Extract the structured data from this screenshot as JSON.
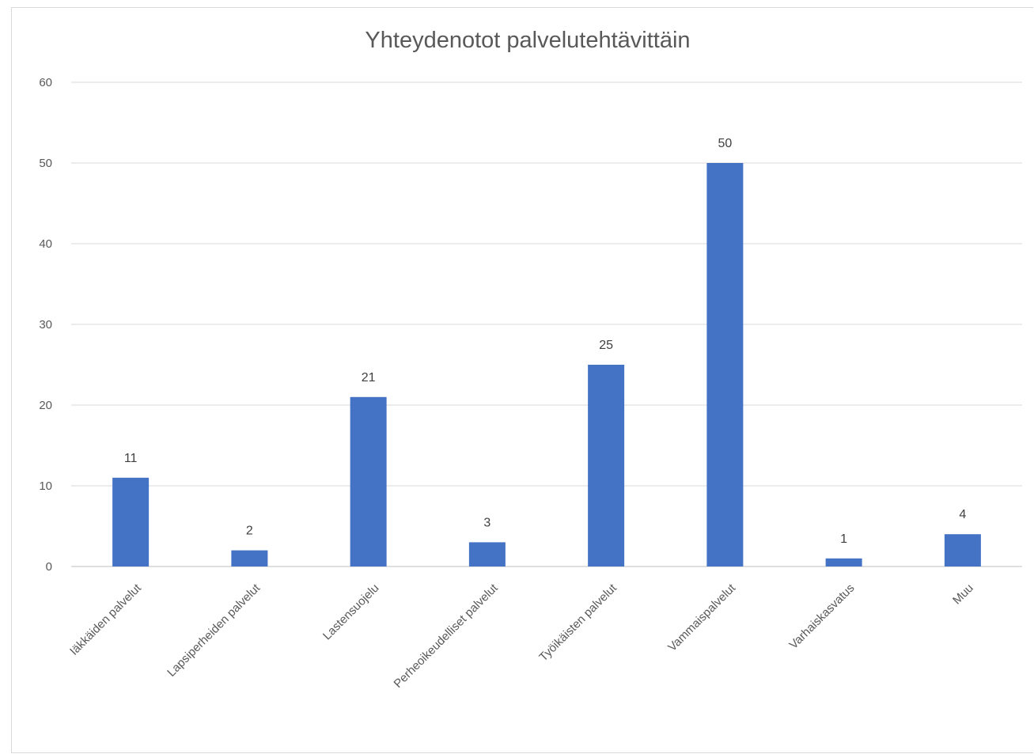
{
  "chart_data": {
    "type": "bar",
    "title": "Yhteydenotot palvelutehtävittäin",
    "categories": [
      "Iäkkäiden palvelut",
      "Lapsiperheiden palvelut",
      "Lastensuojelu",
      "Perheoikeudelliset palvelut",
      "Työikäisten palvelut",
      "Vammaispalvelut",
      "Varhaiskasvatus",
      "Muu"
    ],
    "values": [
      11,
      2,
      21,
      3,
      25,
      50,
      1,
      4
    ],
    "data_labels": [
      "11",
      "2",
      "21",
      "3",
      "25",
      "50",
      "1",
      "4"
    ],
    "yticks": [
      "0",
      "10",
      "20",
      "30",
      "40",
      "50",
      "60"
    ],
    "ylim": [
      0,
      60
    ],
    "xlabel": "",
    "ylabel": "",
    "grid": true,
    "legend": "none",
    "bar_color": "#4472c4"
  }
}
